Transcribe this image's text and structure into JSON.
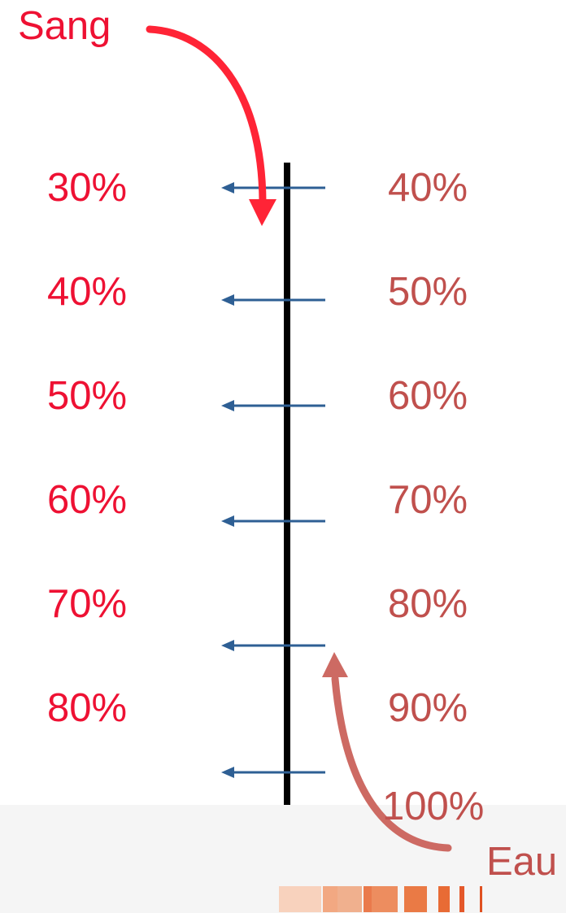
{
  "title_left": "Sang",
  "title_right": "Eau",
  "left_labels": [
    "30%",
    "40%",
    "50%",
    "60%",
    "70%",
    "80%"
  ],
  "right_labels": [
    "40%",
    "50%",
    "60%",
    "70%",
    "80%",
    "90%",
    "100%"
  ],
  "colors": {
    "sang": "#ee1133",
    "eau": "#c0504d",
    "sang_arrow": "#ff2436",
    "eau_arrow": "#cd6a63",
    "tick_arrow": "#2e5f94",
    "axis": "#000000",
    "footer": "#f5f5f5"
  }
}
